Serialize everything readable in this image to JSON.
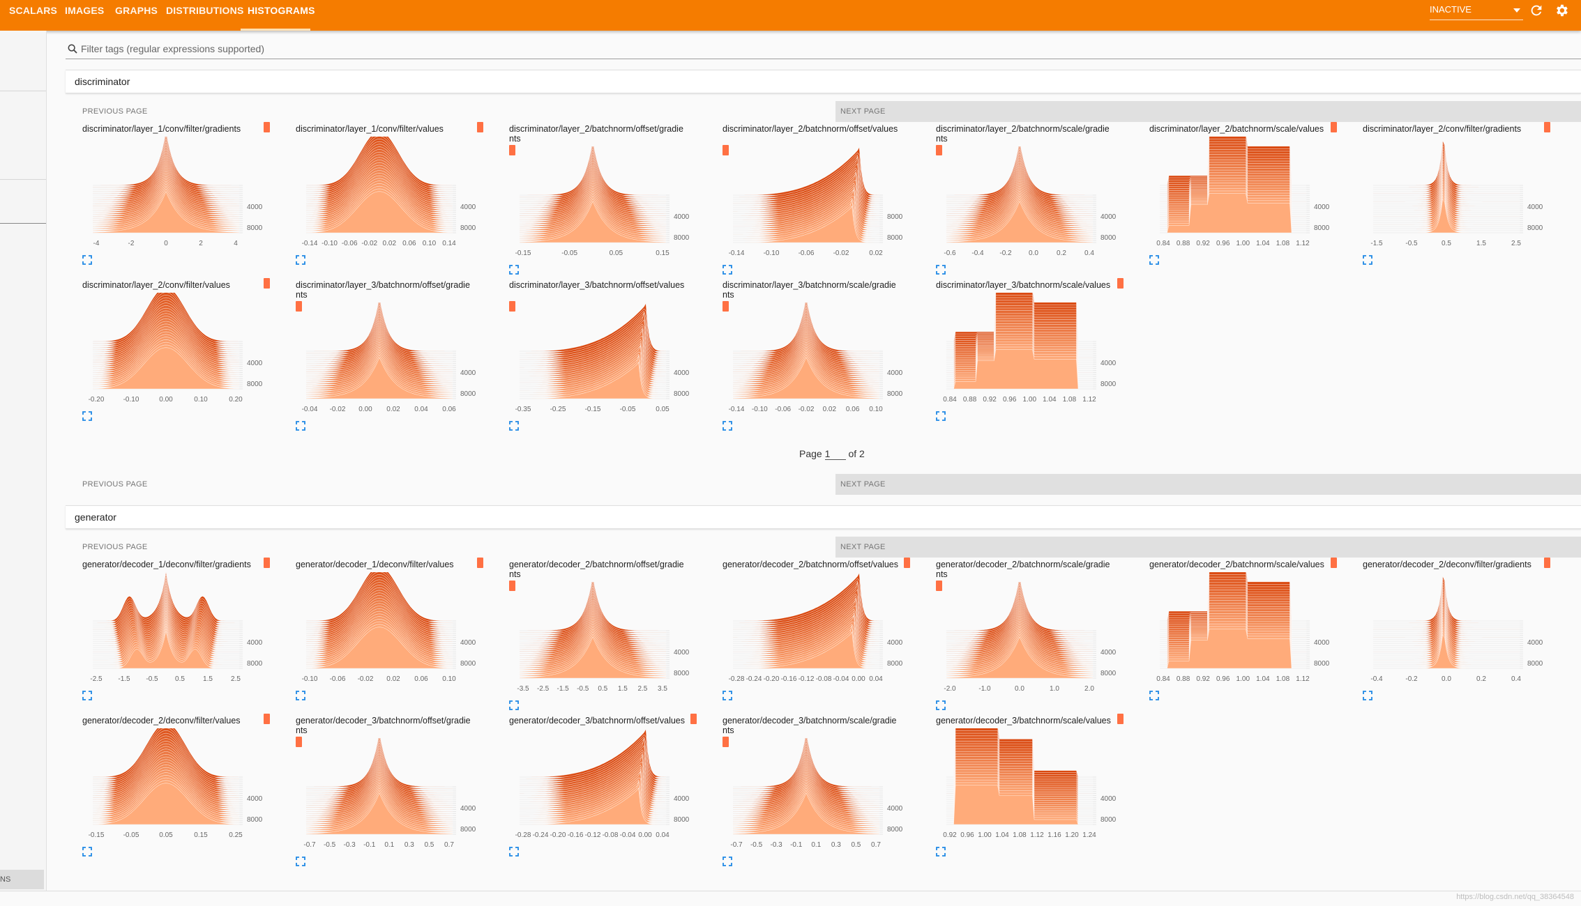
{
  "tabs": [
    "SCALARS",
    "IMAGES",
    "GRAPHS",
    "DISTRIBUTIONS",
    "HISTOGRAMS"
  ],
  "active_tab": "HISTOGRAMS",
  "run_status": "INACTIVE",
  "search": {
    "placeholder": "Filter tags (regular expressions supported)"
  },
  "sidebar": {
    "bottom_button": "NS"
  },
  "pager": {
    "prev": "PREVIOUS PAGE",
    "next": "NEXT PAGE",
    "page_label": "Page",
    "page": "1",
    "of": "of 2"
  },
  "colors": {
    "accent": "#f57c00",
    "hist_dark": "#d9480f",
    "hist_light": "#ffab7a"
  },
  "footer": {
    "watermark": "https://blog.csdn.net/qq_38364548"
  },
  "sections": [
    {
      "name": "discriminator",
      "cards": [
        {
          "title": "discriminator/layer_1/conv/filter/gradients",
          "shape": "peak",
          "ticks": [
            "-4",
            "-2",
            "0",
            "2",
            "4"
          ],
          "y": [
            "4000",
            "8000"
          ]
        },
        {
          "title": "discriminator/layer_1/conv/filter/values",
          "shape": "bell",
          "ticks": [
            "-0.14",
            "-0.10",
            "-0.06",
            "-0.02",
            "0.02",
            "0.06",
            "0.10",
            "0.14"
          ],
          "y": [
            "4000",
            "8000"
          ]
        },
        {
          "title": "discriminator/layer_2/batchnorm/offset/gradients",
          "shape": "peak",
          "ticks": [
            "-0.15",
            "-0.05",
            "0.05",
            "0.15"
          ],
          "y": [
            "4000",
            "8000"
          ]
        },
        {
          "title": "discriminator/layer_2/batchnorm/offset/values",
          "shape": "skew",
          "ticks": [
            "-0.14",
            "-0.10",
            "-0.06",
            "-0.02",
            "0.02"
          ],
          "y": [
            "8000",
            "8000"
          ]
        },
        {
          "title": "discriminator/layer_2/batchnorm/scale/gradients",
          "shape": "peak",
          "ticks": [
            "-0.6",
            "-0.4",
            "-0.2",
            "0.0",
            "0.2",
            "0.4"
          ],
          "y": [
            "4000",
            "8000"
          ]
        },
        {
          "title": "discriminator/layer_2/batchnorm/scale/values",
          "shape": "block",
          "ticks": [
            "0.84",
            "0.88",
            "0.92",
            "0.96",
            "1.00",
            "1.04",
            "1.08",
            "1.12"
          ],
          "y": [
            "4000",
            "8000"
          ]
        },
        {
          "title": "discriminator/layer_2/conv/filter/gradients",
          "shape": "spike",
          "ticks": [
            "-1.5",
            "-0.5",
            "0.5",
            "1.5",
            "2.5"
          ],
          "y": [
            "4000",
            "8000"
          ]
        },
        {
          "title": "discriminator/layer_2/conv/filter/values",
          "shape": "bell",
          "ticks": [
            "-0.20",
            "-0.10",
            "0.00",
            "0.10",
            "0.20"
          ],
          "y": [
            "4000",
            "8000"
          ]
        },
        {
          "title": "discriminator/layer_3/batchnorm/offset/gradients",
          "shape": "peak",
          "ticks": [
            "-0.04",
            "-0.02",
            "0.00",
            "0.02",
            "0.04",
            "0.06"
          ],
          "y": [
            "4000",
            "8000"
          ]
        },
        {
          "title": "discriminator/layer_3/batchnorm/offset/values",
          "shape": "skew",
          "ticks": [
            "-0.35",
            "-0.25",
            "-0.15",
            "-0.05",
            "0.05"
          ],
          "y": [
            "4000",
            "8000"
          ]
        },
        {
          "title": "discriminator/layer_3/batchnorm/scale/gradients",
          "shape": "peak",
          "ticks": [
            "-0.14",
            "-0.10",
            "-0.06",
            "-0.02",
            "0.02",
            "0.06",
            "0.10"
          ],
          "y": [
            "4000",
            "8000"
          ]
        },
        {
          "title": "discriminator/layer_3/batchnorm/scale/values",
          "shape": "block",
          "ticks": [
            "0.84",
            "0.88",
            "0.92",
            "0.96",
            "1.00",
            "1.04",
            "1.08",
            "1.12"
          ],
          "y": [
            "4000",
            "8000"
          ]
        }
      ]
    },
    {
      "name": "generator",
      "cards": [
        {
          "title": "generator/decoder_1/deconv/filter/gradients",
          "shape": "multi",
          "ticks": [
            "-2.5",
            "-1.5",
            "-0.5",
            "0.5",
            "1.5",
            "2.5"
          ],
          "y": [
            "4000",
            "8000"
          ]
        },
        {
          "title": "generator/decoder_1/deconv/filter/values",
          "shape": "bell",
          "ticks": [
            "-0.10",
            "-0.06",
            "-0.02",
            "0.02",
            "0.06",
            "0.10"
          ],
          "y": [
            "4000",
            "8000"
          ]
        },
        {
          "title": "generator/decoder_2/batchnorm/offset/gradients",
          "shape": "peak",
          "ticks": [
            "-3.5",
            "-2.5",
            "-1.5",
            "-0.5",
            "0.5",
            "1.5",
            "2.5",
            "3.5"
          ],
          "y": [
            "4000",
            "8000"
          ]
        },
        {
          "title": "generator/decoder_2/batchnorm/offset/values",
          "shape": "skew",
          "ticks": [
            "-0.28",
            "-0.24",
            "-0.20",
            "-0.16",
            "-0.12",
            "-0.08",
            "-0.04",
            "0.00",
            "0.04"
          ],
          "y": [
            "4000",
            "8000"
          ]
        },
        {
          "title": "generator/decoder_2/batchnorm/scale/gradients",
          "shape": "peak",
          "ticks": [
            "-2.0",
            "-1.0",
            "0.0",
            "1.0",
            "2.0"
          ],
          "y": [
            "4000",
            "8000"
          ]
        },
        {
          "title": "generator/decoder_2/batchnorm/scale/values",
          "shape": "block",
          "ticks": [
            "0.84",
            "0.88",
            "0.92",
            "0.96",
            "1.00",
            "1.04",
            "1.08",
            "1.12"
          ],
          "y": [
            "4000",
            "8000"
          ]
        },
        {
          "title": "generator/decoder_2/deconv/filter/gradients",
          "shape": "spike",
          "ticks": [
            "-0.4",
            "-0.2",
            "0.0",
            "0.2",
            "0.4"
          ],
          "y": [
            "4000",
            "8000"
          ]
        },
        {
          "title": "generator/decoder_2/deconv/filter/values",
          "shape": "bell",
          "ticks": [
            "-0.15",
            "-0.05",
            "0.05",
            "0.15",
            "0.25"
          ],
          "y": [
            "4000",
            "8000"
          ]
        },
        {
          "title": "generator/decoder_3/batchnorm/offset/gradients",
          "shape": "peak",
          "ticks": [
            "-0.7",
            "-0.5",
            "-0.3",
            "-0.1",
            "0.1",
            "0.3",
            "0.5",
            "0.7"
          ],
          "y": [
            "4000",
            "8000"
          ]
        },
        {
          "title": "generator/decoder_3/batchnorm/offset/values",
          "shape": "skew",
          "ticks": [
            "-0.28",
            "-0.24",
            "-0.20",
            "-0.16",
            "-0.12",
            "-0.08",
            "-0.04",
            "0.00",
            "0.04"
          ],
          "y": [
            "4000",
            "8000"
          ]
        },
        {
          "title": "generator/decoder_3/batchnorm/scale/gradients",
          "shape": "peak",
          "ticks": [
            "-0.7",
            "-0.5",
            "-0.3",
            "-0.1",
            "0.1",
            "0.3",
            "0.5",
            "0.7"
          ],
          "y": [
            "4000",
            "8000"
          ]
        },
        {
          "title": "generator/decoder_3/batchnorm/scale/values",
          "shape": "blockL",
          "ticks": [
            "0.92",
            "0.96",
            "1.00",
            "1.04",
            "1.08",
            "1.12",
            "1.16",
            "1.20",
            "1.24"
          ],
          "y": [
            "4000",
            "8000"
          ]
        }
      ]
    }
  ]
}
